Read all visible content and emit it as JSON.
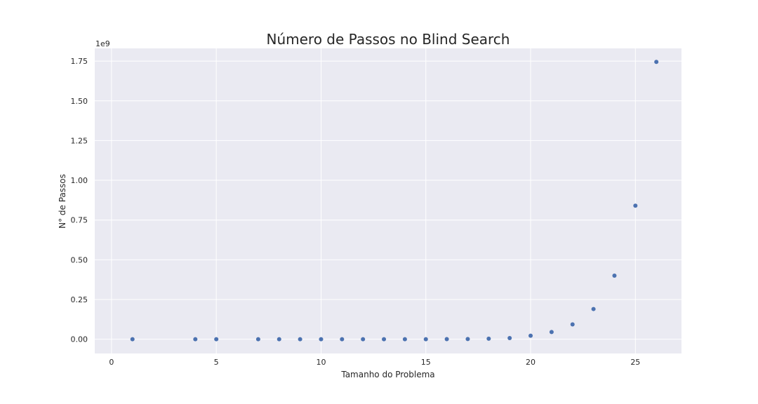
{
  "chart_data": {
    "type": "scatter",
    "title": "Número de Passos no Blind Search",
    "xlabel": "Tamanho do Problema",
    "ylabel": "N° de Passos",
    "y_offset_label": "1e9",
    "xlim": [
      -0.8,
      27.2
    ],
    "ylim": [
      -0.09,
      1.83
    ],
    "xticks": [
      0,
      5,
      10,
      15,
      20,
      25
    ],
    "xtick_labels": [
      "0",
      "5",
      "10",
      "15",
      "20",
      "25"
    ],
    "yticks": [
      0,
      0.25,
      0.5,
      0.75,
      1.0,
      1.25,
      1.5,
      1.75
    ],
    "ytick_labels": [
      "0.00",
      "0.25",
      "0.50",
      "0.75",
      "1.00",
      "1.25",
      "1.50",
      "1.75"
    ],
    "grid": true,
    "legend": "none",
    "background": "#eaeaf2",
    "point_color": "#4c72b0",
    "series": [
      {
        "x": [
          1,
          4,
          5,
          7,
          8,
          9,
          10,
          11,
          12,
          13,
          14,
          15,
          16,
          17,
          18,
          19,
          20,
          21,
          22,
          23,
          24,
          25,
          26
        ],
        "y": [
          0,
          0,
          0,
          0,
          0,
          0,
          0,
          0,
          0,
          0,
          0,
          0,
          0.0005,
          0.001,
          0.003,
          0.007,
          0.022,
          0.045,
          0.093,
          0.19,
          0.4,
          0.84,
          1.745
        ]
      }
    ]
  }
}
